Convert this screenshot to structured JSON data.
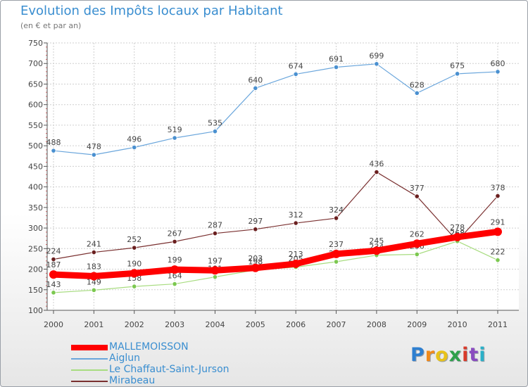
{
  "header": {
    "title": "Evolution des Impôts locaux par Habitant",
    "subtitle": "(en € et par an)"
  },
  "brand": {
    "letters": [
      "P",
      "r",
      "o",
      "x",
      "i",
      "t",
      "i"
    ],
    "letter_colors": [
      "#2e7fd0",
      "#f08a1c",
      "#e8c21a",
      "#2ea04a",
      "#d83a2a",
      "#8a4ac0",
      "#2ab0c8"
    ]
  },
  "chart_data": {
    "type": "line",
    "title": "Evolution des Impôts locaux par Habitant",
    "subtitle": "(en € et par an)",
    "xlabel": "",
    "ylabel": "",
    "categories": [
      "2000",
      "2001",
      "2002",
      "2003",
      "2004",
      "2005",
      "2006",
      "2007",
      "2008",
      "2009",
      "2010",
      "2011"
    ],
    "ylim": [
      100,
      750
    ],
    "yticks": [
      100,
      150,
      200,
      250,
      300,
      350,
      400,
      450,
      500,
      550,
      600,
      650,
      700,
      750
    ],
    "grid": true,
    "legend_position": "bottom-left",
    "series": [
      {
        "name": "Aiglun",
        "color": "#6aa6dc",
        "marker_color": "#4a90d0",
        "thick": false,
        "values": [
          488,
          478,
          496,
          519,
          535,
          640,
          674,
          691,
          699,
          628,
          675,
          680
        ],
        "labels": [
          "488",
          "478",
          "496",
          "519",
          "535",
          "640",
          "674",
          "691",
          "699",
          "628",
          "675",
          "680"
        ]
      },
      {
        "name": "Mirabeau",
        "color": "#7a3030",
        "marker_color": "#6a1f1f",
        "thick": false,
        "values": [
          224,
          241,
          252,
          267,
          287,
          297,
          312,
          324,
          436,
          377,
          268,
          378
        ],
        "labels": [
          "224",
          "241",
          "252",
          "267",
          "287",
          "297",
          "312",
          "324",
          "436",
          "377",
          "268",
          "378"
        ]
      },
      {
        "name": "Le Chaffaut-Saint-Jurson",
        "color": "#a8dc80",
        "marker_color": "#7cc850",
        "thick": false,
        "values": [
          143,
          149,
          158,
          164,
          181,
          198,
          205,
          218,
          234,
          236,
          268,
          222
        ],
        "labels": [
          "143",
          "149",
          "158",
          "164",
          "181",
          "198",
          "205",
          "218",
          "234",
          "236",
          "268",
          "222"
        ]
      },
      {
        "name": "MALLEMOISSON",
        "color": "#ff0000",
        "marker_color": "#ff0000",
        "thick": true,
        "values": [
          187,
          183,
          190,
          199,
          197,
          203,
          213,
          237,
          245,
          262,
          278,
          291
        ],
        "labels": [
          "187",
          "183",
          "190",
          "199",
          "197",
          "203",
          "213",
          "237",
          "245",
          "262",
          "278",
          "291"
        ]
      }
    ],
    "legend_order": [
      "MALLEMOISSON",
      "Aiglun",
      "Le Chaffaut-Saint-Jurson",
      "Mirabeau"
    ]
  }
}
